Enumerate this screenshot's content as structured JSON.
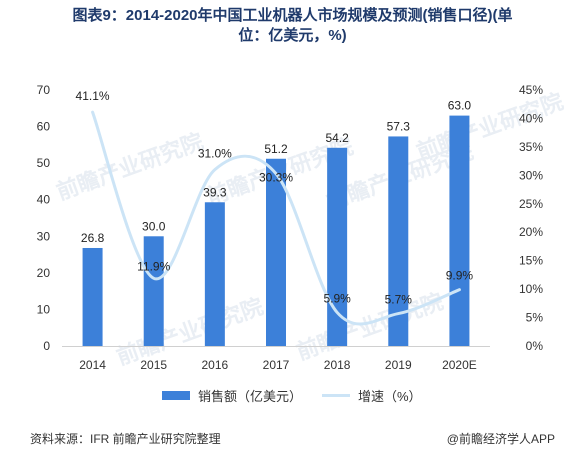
{
  "title": {
    "line1": "图表9：2014-2020年中国工业机器人市场规模及预测(销售口径)(单",
    "line2": "位：亿美元，%)"
  },
  "chart_data": {
    "type": "bar",
    "categories": [
      "2014",
      "2015",
      "2016",
      "2017",
      "2018",
      "2019",
      "2020E"
    ],
    "series": [
      {
        "name": "销售额（亿美元）",
        "type": "bar",
        "axis": "left",
        "values": [
          26.8,
          30.0,
          39.3,
          51.2,
          54.2,
          57.3,
          63.0
        ],
        "labels": [
          "26.8",
          "30.0",
          "39.3",
          "51.2",
          "54.2",
          "57.3",
          "63.0"
        ]
      },
      {
        "name": "增速（%）",
        "type": "line",
        "axis": "right",
        "values": [
          41.1,
          11.9,
          31.0,
          30.3,
          5.9,
          5.7,
          9.9
        ],
        "labels": [
          "41.1%",
          "11.9%",
          "31.0%",
          "30.3%",
          "5.9%",
          "5.7%",
          "9.9%"
        ]
      }
    ],
    "y_left": {
      "min": 0,
      "max": 70,
      "ticks": [
        "0",
        "10",
        "20",
        "30",
        "40",
        "50",
        "60",
        "70"
      ]
    },
    "y_right": {
      "min": 0,
      "max": 45,
      "ticks": [
        "0%",
        "5%",
        "10%",
        "15%",
        "20%",
        "25%",
        "30%",
        "35%",
        "40%",
        "45%"
      ]
    },
    "grid": false,
    "legend_position": "bottom"
  },
  "colors": {
    "bar": "#3c80d9",
    "line": "#cce4f6",
    "axis_text": "#333333"
  },
  "footer": {
    "source": "资料来源：IFR 前瞻产业研究院整理",
    "brand": "@前瞻经济学人APP"
  },
  "watermark": {
    "text": "前瞻产业研究院"
  }
}
